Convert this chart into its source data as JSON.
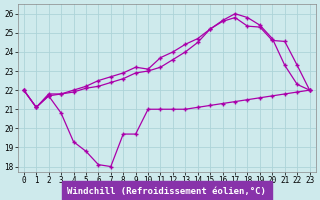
{
  "xlabel": "Windchill (Refroidissement éolien,°C)",
  "bg_color": "#ceeaec",
  "grid_color": "#add4d8",
  "line_color": "#aa00aa",
  "xlabel_bg": "#8833aa",
  "xlim": [
    -0.5,
    23.5
  ],
  "ylim": [
    17.7,
    26.5
  ],
  "xticks": [
    0,
    1,
    2,
    3,
    4,
    5,
    6,
    7,
    8,
    9,
    10,
    11,
    12,
    13,
    14,
    15,
    16,
    17,
    18,
    19,
    20,
    21,
    22,
    23
  ],
  "yticks": [
    18,
    19,
    20,
    21,
    22,
    23,
    24,
    25,
    26
  ],
  "line1_x": [
    0,
    1,
    2,
    3,
    4,
    5,
    6,
    7,
    8,
    9,
    10,
    11,
    12,
    13,
    14,
    15,
    16,
    17,
    18,
    19,
    20,
    21,
    22,
    23
  ],
  "line1_y": [
    22.0,
    21.1,
    21.8,
    21.8,
    22.0,
    22.2,
    22.5,
    22.7,
    22.9,
    23.2,
    23.1,
    23.7,
    24.0,
    24.4,
    24.7,
    25.2,
    25.65,
    26.0,
    25.8,
    25.4,
    24.7,
    23.3,
    22.3,
    22.0
  ],
  "line2_x": [
    0,
    1,
    2,
    3,
    4,
    5,
    6,
    7,
    8,
    9,
    10,
    11,
    12,
    13,
    14,
    15,
    16,
    17,
    18,
    19,
    20,
    21,
    22,
    23
  ],
  "line2_y": [
    22.0,
    21.1,
    21.7,
    20.8,
    19.3,
    18.8,
    18.1,
    18.0,
    19.7,
    19.7,
    21.0,
    21.0,
    21.0,
    21.0,
    21.1,
    21.2,
    21.3,
    21.4,
    21.5,
    21.6,
    21.7,
    21.8,
    21.9,
    22.0
  ],
  "line3_x": [
    0,
    1,
    2,
    3,
    4,
    5,
    6,
    7,
    8,
    9,
    10,
    11,
    12,
    13,
    14,
    15,
    16,
    17,
    18,
    19,
    20,
    21,
    22,
    23
  ],
  "line3_y": [
    22.0,
    21.1,
    21.7,
    21.8,
    21.9,
    22.1,
    22.2,
    22.4,
    22.6,
    22.9,
    23.0,
    23.2,
    23.6,
    24.0,
    24.5,
    25.2,
    25.6,
    25.8,
    25.35,
    25.3,
    24.6,
    24.55,
    23.3,
    22.0
  ],
  "font_size_tick": 5.5,
  "font_size_label": 6.5,
  "marker": "+",
  "marker_size": 3,
  "linewidth": 0.9
}
